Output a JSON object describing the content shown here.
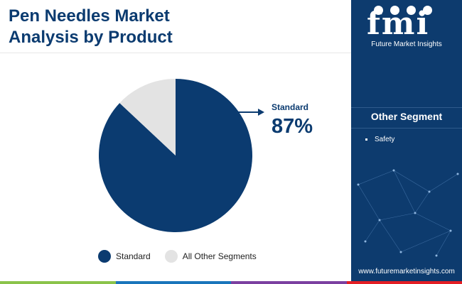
{
  "header": {
    "title_line1": "Pen Needles Market",
    "title_line2": "Analysis by Product"
  },
  "chart_data": {
    "type": "pie",
    "categories": [
      "Standard",
      "All Other Segments"
    ],
    "values": [
      87,
      13
    ],
    "colors": [
      "#0b3b70",
      "#e3e3e3"
    ],
    "legend_position": "bottom",
    "annotation": {
      "label": "Standard",
      "value": "87%"
    }
  },
  "legend": {
    "items": [
      {
        "label": "Standard",
        "color": "#0b3b70"
      },
      {
        "label": "All Other Segments",
        "color": "#e3e3e3"
      }
    ]
  },
  "sidebar": {
    "logo_text": "fmi",
    "logo_subtitle": "Future Market Insights",
    "segment_title": "Other Segment",
    "segment_items": [
      "Safety"
    ],
    "url": "www.futuremarketinsights.com"
  },
  "colors": {
    "primary": "#0b3b70",
    "sidebar_bg": "#0d3b6e",
    "bottom_bar": [
      "#8bc34a",
      "#1a75bb",
      "#7b3fa0",
      "#e31e24"
    ]
  }
}
